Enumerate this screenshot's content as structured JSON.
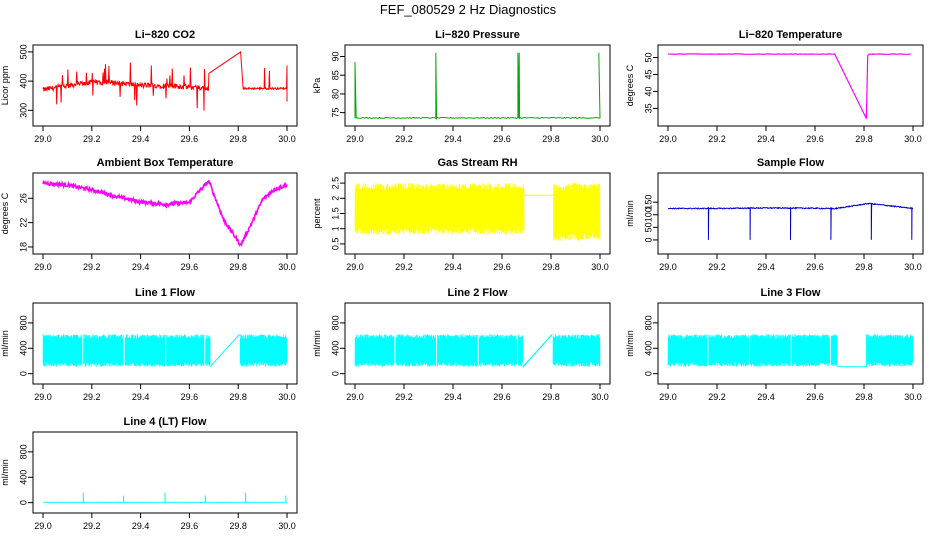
{
  "window": {
    "title": "FEF_080529  2 Hz Diagnostics"
  },
  "chart_data": [
    {
      "type": "line",
      "title": "Li−820 CO2",
      "xlabel": "",
      "ylabel": "Licor ppm",
      "xlim": [
        29.0,
        30.0
      ],
      "ylim": [
        260,
        510
      ],
      "xticks": [
        "29.0",
        "29.2",
        "29.4",
        "29.6",
        "29.8",
        "30.0"
      ],
      "yticks": [
        300,
        400,
        500
      ],
      "color": "#ff0000",
      "series": [
        {
          "x": [
            29.0,
            29.1,
            29.2,
            29.3,
            29.4,
            29.5,
            29.6,
            29.68,
            29.81,
            29.82,
            29.9,
            30.0
          ],
          "y": [
            370,
            385,
            395,
            395,
            385,
            385,
            380,
            375,
            500,
            375,
            375,
            375
          ]
        }
      ]
    },
    {
      "type": "line",
      "title": "Li−820 Pressure",
      "xlabel": "",
      "ylabel": "kPa",
      "xlim": [
        29.0,
        30.0
      ],
      "ylim": [
        72.5,
        92
      ],
      "xticks": [
        "29.0",
        "29.2",
        "29.4",
        "29.6",
        "29.8",
        "30.0"
      ],
      "yticks": [
        75,
        80,
        85,
        90
      ],
      "color": "#00aa00",
      "series": [
        {
          "x": [
            29.0,
            29.33,
            29.67,
            30.0
          ],
          "y": [
            73.5,
            73.5,
            73.5,
            73.5
          ]
        }
      ]
    },
    {
      "type": "line",
      "title": "Li−820 Temperature",
      "xlabel": "",
      "ylabel": "degrees C",
      "xlim": [
        29.0,
        30.0
      ],
      "ylim": [
        31,
        52.5
      ],
      "xticks": [
        "29.0",
        "29.2",
        "29.4",
        "29.6",
        "29.8",
        "30.0"
      ],
      "yticks": [
        35,
        40,
        45,
        50
      ],
      "color": "#ff00ff",
      "series": [
        {
          "x": [
            29.0,
            29.69,
            29.81,
            29.82,
            30.0
          ],
          "y": [
            51,
            51,
            32,
            51,
            51
          ]
        }
      ]
    },
    {
      "type": "line",
      "title": "Ambient Box Temperature",
      "xlabel": "",
      "ylabel": "degrees C",
      "xlim": [
        29.0,
        30.0
      ],
      "ylim": [
        17.5,
        29.5
      ],
      "xticks": [
        "29.0",
        "29.2",
        "29.4",
        "29.6",
        "29.8",
        "30.0"
      ],
      "yticks": [
        18,
        22,
        26
      ],
      "color": "#ff00ff",
      "series": [
        {
          "x": [
            29.0,
            29.1,
            29.2,
            29.3,
            29.4,
            29.5,
            29.6,
            29.64,
            29.68,
            29.74,
            29.81,
            29.85,
            29.9,
            29.95,
            30.0
          ],
          "y": [
            28.5,
            28.2,
            27.4,
            26.3,
            25.4,
            25.0,
            25.3,
            27.2,
            28.8,
            22.5,
            18.3,
            21.5,
            25.8,
            27.5,
            28.2
          ]
        }
      ]
    },
    {
      "type": "line",
      "title": "Gas Stream RH",
      "xlabel": "",
      "ylabel": "percent",
      "xlim": [
        29.0,
        30.0
      ],
      "ylim": [
        0.3,
        2.7
      ],
      "xticks": [
        "29.0",
        "29.2",
        "29.4",
        "29.6",
        "29.8",
        "30.0"
      ],
      "yticks": [
        0.5,
        1.0,
        1.5,
        2.0,
        2.5
      ],
      "color": "#ffff00",
      "series": [
        {
          "x": [
            29.0,
            29.69,
            29.81,
            30.0
          ],
          "y": [
            2.3,
            2.3,
            2.1,
            2.3
          ]
        }
      ]
    },
    {
      "type": "line",
      "title": "Sample Flow",
      "xlabel": "",
      "ylabel": "ml/min",
      "xlim": [
        29.0,
        30.0
      ],
      "ylim": [
        -40,
        250
      ],
      "xticks": [
        "29.0",
        "29.2",
        "29.4",
        "29.6",
        "29.8",
        "30.0"
      ],
      "yticks": [
        0,
        50,
        100,
        150
      ],
      "color": "#0000cc",
      "series": [
        {
          "x": [
            29.0,
            29.2,
            29.4,
            29.6,
            29.68,
            29.82,
            30.0
          ],
          "y": [
            125,
            125,
            127,
            126,
            124,
            145,
            125
          ]
        }
      ]
    },
    {
      "type": "line",
      "title": "Line 1 Flow",
      "xlabel": "",
      "ylabel": "ml/min",
      "xlim": [
        29.0,
        30.0
      ],
      "ylim": [
        -100,
        1050
      ],
      "xticks": [
        "29.0",
        "29.2",
        "29.4",
        "29.6",
        "29.8",
        "30.0"
      ],
      "yticks": [
        0,
        400,
        800
      ],
      "color": "#00ffff",
      "series": [
        {
          "x": [
            29.0,
            30.0
          ],
          "y": [
            620,
            620
          ]
        }
      ]
    },
    {
      "type": "line",
      "title": "Line 2 Flow",
      "xlabel": "",
      "ylabel": "ml/min",
      "xlim": [
        29.0,
        30.0
      ],
      "ylim": [
        -100,
        1050
      ],
      "xticks": [
        "29.0",
        "29.2",
        "29.4",
        "29.6",
        "29.8",
        "30.0"
      ],
      "yticks": [
        0,
        400,
        800
      ],
      "color": "#00ffff",
      "series": [
        {
          "x": [
            29.0,
            30.0
          ],
          "y": [
            620,
            620
          ]
        }
      ]
    },
    {
      "type": "line",
      "title": "Line 3 Flow",
      "xlabel": "",
      "ylabel": "ml/min",
      "xlim": [
        29.0,
        30.0
      ],
      "ylim": [
        -100,
        1050
      ],
      "xticks": [
        "29.0",
        "29.2",
        "29.4",
        "29.6",
        "29.8",
        "30.0"
      ],
      "yticks": [
        0,
        400,
        800
      ],
      "color": "#00ffff",
      "series": [
        {
          "x": [
            29.0,
            30.0
          ],
          "y": [
            620,
            620
          ]
        }
      ]
    },
    {
      "type": "line",
      "title": "Line 4 (LT) Flow",
      "xlabel": "",
      "ylabel": "ml/min",
      "xlim": [
        29.0,
        30.0
      ],
      "ylim": [
        -100,
        1050
      ],
      "xticks": [
        "29.0",
        "29.2",
        "29.4",
        "29.6",
        "29.8",
        "30.0"
      ],
      "yticks": [
        0,
        400,
        800
      ],
      "color": "#00ffff",
      "series": [
        {
          "x": [
            29.0,
            30.0
          ],
          "y": [
            5,
            5
          ]
        }
      ]
    }
  ]
}
